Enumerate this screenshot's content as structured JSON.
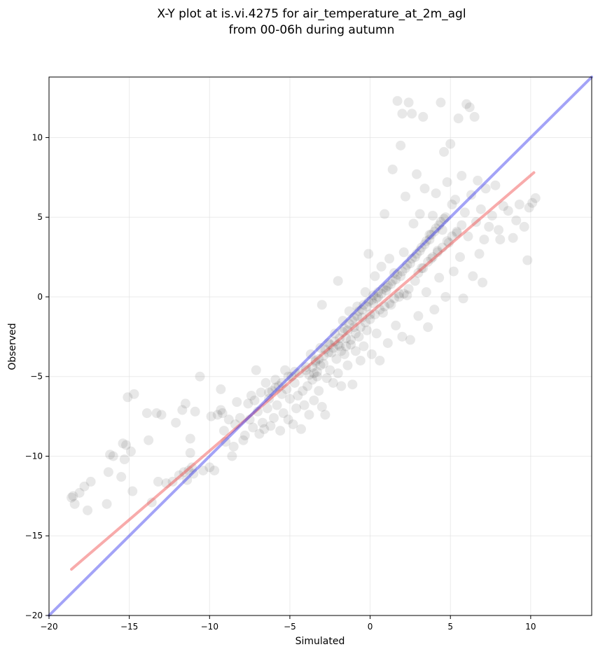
{
  "chart_data": {
    "type": "scatter",
    "title_line1": "X-Y plot at is.vi.4275 for air_temperature_at_2m_agl",
    "title_line2": "from 00-06h during autumn",
    "xlabel": "Simulated",
    "ylabel": "Observed",
    "xlim": [
      -20,
      13.8
    ],
    "ylim": [
      -20,
      13.8
    ],
    "x_ticks": [
      -20,
      -15,
      -10,
      -5,
      0,
      5,
      10
    ],
    "y_ticks": [
      -20,
      -15,
      -10,
      -5,
      0,
      5,
      10
    ],
    "x_tick_labels": [
      "−20",
      "−15",
      "−10",
      "−5",
      "0",
      "5",
      "10"
    ],
    "y_tick_labels": [
      "−20",
      "−15",
      "−10",
      "−5",
      "0",
      "5",
      "10"
    ],
    "grid": true,
    "point_color": "#000000",
    "point_opacity": 0.09,
    "points": [
      [
        -18.6,
        -12.6
      ],
      [
        -18.4,
        -13.0
      ],
      [
        -18.1,
        -12.3
      ],
      [
        -17.8,
        -11.9
      ],
      [
        -17.6,
        -13.4
      ],
      [
        -17.4,
        -11.6
      ],
      [
        -16.4,
        -13.0
      ],
      [
        -16.3,
        -11.0
      ],
      [
        -16.2,
        -9.9
      ],
      [
        -16.0,
        -10.0
      ],
      [
        -15.5,
        -11.3
      ],
      [
        -15.4,
        -9.2
      ],
      [
        -15.3,
        -10.2
      ],
      [
        -15.2,
        -9.3
      ],
      [
        -15.1,
        -6.3
      ],
      [
        -14.9,
        -9.7
      ],
      [
        -14.7,
        -6.1
      ],
      [
        -14.8,
        -12.2
      ],
      [
        -13.9,
        -7.3
      ],
      [
        -13.8,
        -9.0
      ],
      [
        -13.6,
        -12.9
      ],
      [
        -13.3,
        -7.3
      ],
      [
        -13.2,
        -11.6
      ],
      [
        -13.0,
        -7.4
      ],
      [
        -12.7,
        -11.7
      ],
      [
        -12.3,
        -11.6
      ],
      [
        -12.1,
        -7.9
      ],
      [
        -11.9,
        -11.2
      ],
      [
        -11.7,
        -7.1
      ],
      [
        -11.6,
        -11.0
      ],
      [
        -11.5,
        -6.7
      ],
      [
        -11.4,
        -11.5
      ],
      [
        -11.3,
        -10.9
      ],
      [
        -11.2,
        -8.9
      ],
      [
        -11.2,
        -9.8
      ],
      [
        -11.1,
        -10.7
      ],
      [
        -11.0,
        -11.1
      ],
      [
        -10.9,
        -7.2
      ],
      [
        -10.6,
        -5.0
      ],
      [
        -10.4,
        -10.9
      ],
      [
        -10.0,
        -10.7
      ],
      [
        -9.9,
        -7.5
      ],
      [
        -9.7,
        -10.9
      ],
      [
        -9.5,
        -7.4
      ],
      [
        -9.3,
        -5.8
      ],
      [
        -9.3,
        -7.1
      ],
      [
        -9.2,
        -7.3
      ],
      [
        -9.1,
        -8.4
      ],
      [
        -9.0,
        -9.1
      ],
      [
        -8.8,
        -7.7
      ],
      [
        -8.6,
        -10.0
      ],
      [
        -8.5,
        -9.4
      ],
      [
        -8.4,
        -8.0
      ],
      [
        -8.3,
        -6.6
      ],
      [
        -8.1,
        -7.6
      ],
      [
        -7.9,
        -9.0
      ],
      [
        -7.8,
        -8.7
      ],
      [
        -7.6,
        -6.7
      ],
      [
        -7.5,
        -7.7
      ],
      [
        -7.4,
        -6.2
      ],
      [
        -7.3,
        -8.2
      ],
      [
        -7.2,
        -6.5
      ],
      [
        -7.1,
        -4.6
      ],
      [
        -7.0,
        -7.2
      ],
      [
        -6.9,
        -8.6
      ],
      [
        -6.8,
        -6.0
      ],
      [
        -6.7,
        -7.9
      ],
      [
        -6.6,
        -8.3
      ],
      [
        -6.5,
        -5.4
      ],
      [
        -6.4,
        -7.0
      ],
      [
        -6.3,
        -6.4
      ],
      [
        -6.2,
        -8.1
      ],
      [
        -6.1,
        -5.9
      ],
      [
        -6.0,
        -7.6
      ],
      [
        -5.9,
        -5.2
      ],
      [
        -5.8,
        -6.8
      ],
      [
        -5.7,
        -5.6
      ],
      [
        -5.6,
        -8.4
      ],
      [
        -5.5,
        -6.1
      ],
      [
        -5.4,
        -7.3
      ],
      [
        -5.3,
        -4.6
      ],
      [
        -5.2,
        -5.8
      ],
      [
        -5.1,
        -7.7
      ],
      [
        -5.0,
        -6.4
      ],
      [
        -4.9,
        -5.0
      ],
      [
        -4.8,
        -8.0
      ],
      [
        -4.7,
        -5.4
      ],
      [
        -4.6,
        -7.0
      ],
      [
        -4.5,
        -6.2
      ],
      [
        -4.4,
        -4.8
      ],
      [
        -4.3,
        -8.3
      ],
      [
        -4.2,
        -5.9
      ],
      [
        -4.1,
        -6.8
      ],
      [
        -4.0,
        -4.4
      ],
      [
        -3.9,
        -5.6
      ],
      [
        -3.8,
        -7.4
      ],
      [
        -3.7,
        -3.6
      ],
      [
        -3.6,
        -5.2
      ],
      [
        -3.5,
        -6.5
      ],
      [
        -3.4,
        -4.0
      ],
      [
        -3.3,
        -4.7
      ],
      [
        -3.2,
        -5.9
      ],
      [
        -3.1,
        -3.2
      ],
      [
        -3.0,
        -0.5
      ],
      [
        -3.0,
        -6.9
      ],
      [
        -2.9,
        -4.2
      ],
      [
        -2.8,
        -7.4
      ],
      [
        -2.7,
        -5.1
      ],
      [
        -2.6,
        -2.9
      ],
      [
        -2.5,
        -4.6
      ],
      [
        -2.4,
        -3.5
      ],
      [
        -2.3,
        -5.4
      ],
      [
        -2.2,
        -2.3
      ],
      [
        -2.1,
        -3.9
      ],
      [
        -2.0,
        1.0
      ],
      [
        -2.0,
        -4.8
      ],
      [
        -1.9,
        -3.1
      ],
      [
        -1.8,
        -5.6
      ],
      [
        -1.7,
        -1.5
      ],
      [
        -1.6,
        -3.6
      ],
      [
        -1.5,
        -2.6
      ],
      [
        -1.4,
        -4.3
      ],
      [
        -1.3,
        -0.9
      ],
      [
        -1.2,
        -3.0
      ],
      [
        -1.1,
        -5.5
      ],
      [
        -1.0,
        -1.9
      ],
      [
        -0.9,
        -3.4
      ],
      [
        -0.8,
        -0.6
      ],
      [
        -0.7,
        -2.5
      ],
      [
        -0.6,
        -4.0
      ],
      [
        -0.5,
        -1.3
      ],
      [
        -0.4,
        -3.1
      ],
      [
        -0.3,
        0.3
      ],
      [
        -0.2,
        -2.1
      ],
      [
        -0.1,
        2.7
      ],
      [
        0.0,
        -1.1
      ],
      [
        0.1,
        -3.6
      ],
      [
        0.2,
        -0.4
      ],
      [
        0.3,
        1.3
      ],
      [
        0.4,
        -2.3
      ],
      [
        0.5,
        0.0
      ],
      [
        0.6,
        -4.0
      ],
      [
        0.7,
        1.9
      ],
      [
        0.8,
        -1.0
      ],
      [
        0.9,
        5.2
      ],
      [
        1.0,
        0.6
      ],
      [
        1.1,
        -2.9
      ],
      [
        1.2,
        2.4
      ],
      [
        1.3,
        -0.5
      ],
      [
        1.4,
        8.0
      ],
      [
        1.5,
        1.5
      ],
      [
        1.6,
        -1.8
      ],
      [
        1.7,
        12.3
      ],
      [
        1.8,
        0.2
      ],
      [
        1.9,
        9.5
      ],
      [
        2.0,
        11.5
      ],
      [
        2.0,
        -2.5
      ],
      [
        2.1,
        2.8
      ],
      [
        2.2,
        6.3
      ],
      [
        2.3,
        0.1
      ],
      [
        2.4,
        12.2
      ],
      [
        2.5,
        -2.7
      ],
      [
        2.6,
        11.5
      ],
      [
        2.7,
        4.6
      ],
      [
        2.8,
        1.0
      ],
      [
        2.9,
        7.7
      ],
      [
        3.0,
        -1.2
      ],
      [
        3.1,
        5.2
      ],
      [
        3.2,
        1.8
      ],
      [
        3.3,
        11.3
      ],
      [
        3.4,
        6.8
      ],
      [
        3.5,
        0.3
      ],
      [
        3.6,
        -1.9
      ],
      [
        3.7,
        3.9
      ],
      [
        3.8,
        2.4
      ],
      [
        3.9,
        5.1
      ],
      [
        4.0,
        -0.8
      ],
      [
        4.1,
        6.5
      ],
      [
        4.2,
        2.9
      ],
      [
        4.3,
        1.2
      ],
      [
        4.4,
        12.2
      ],
      [
        4.5,
        4.2
      ],
      [
        4.6,
        9.1
      ],
      [
        4.7,
        0.0
      ],
      [
        4.8,
        7.2
      ],
      [
        4.9,
        3.4
      ],
      [
        5.0,
        9.6
      ],
      [
        5.1,
        5.8
      ],
      [
        5.2,
        1.6
      ],
      [
        5.3,
        6.1
      ],
      [
        5.4,
        4.0
      ],
      [
        5.5,
        11.2
      ],
      [
        5.6,
        2.5
      ],
      [
        5.7,
        7.6
      ],
      [
        5.8,
        -0.1
      ],
      [
        5.9,
        5.3
      ],
      [
        6.0,
        12.1
      ],
      [
        6.1,
        3.8
      ],
      [
        6.2,
        11.9
      ],
      [
        6.3,
        6.4
      ],
      [
        6.4,
        1.3
      ],
      [
        6.5,
        11.3
      ],
      [
        6.6,
        4.7
      ],
      [
        6.7,
        7.3
      ],
      [
        6.8,
        2.7
      ],
      [
        6.9,
        5.5
      ],
      [
        7.0,
        0.9
      ],
      [
        7.1,
        3.6
      ],
      [
        7.2,
        6.8
      ],
      [
        7.4,
        4.4
      ],
      [
        7.6,
        5.1
      ],
      [
        7.8,
        7.0
      ],
      [
        8.0,
        4.2
      ],
      [
        8.1,
        3.6
      ],
      [
        8.3,
        5.7
      ],
      [
        8.6,
        5.4
      ],
      [
        8.9,
        3.7
      ],
      [
        9.1,
        4.8
      ],
      [
        9.3,
        5.8
      ],
      [
        9.6,
        4.4
      ],
      [
        9.8,
        2.3
      ],
      [
        9.9,
        5.6
      ],
      [
        10.1,
        5.9
      ],
      [
        10.3,
        6.2
      ],
      [
        -18.5,
        -12.5
      ],
      [
        -3.4,
        -4.1
      ],
      [
        -3.2,
        -3.9
      ],
      [
        -3.1,
        -4.3
      ],
      [
        -2.9,
        -3.7
      ],
      [
        -2.8,
        -3.3
      ],
      [
        -2.6,
        -3.5
      ],
      [
        -2.5,
        -3.0
      ],
      [
        -2.3,
        -3.2
      ],
      [
        -2.2,
        -2.8
      ],
      [
        -2.0,
        -3.0
      ],
      [
        -1.9,
        -2.6
      ],
      [
        -1.7,
        -2.2
      ],
      [
        -1.6,
        -2.0
      ],
      [
        -1.4,
        -2.1
      ],
      [
        -1.3,
        -1.7
      ],
      [
        -1.1,
        -1.5
      ],
      [
        -1.0,
        -1.3
      ],
      [
        -0.8,
        -1.2
      ],
      [
        -0.7,
        -0.9
      ],
      [
        -0.5,
        -0.8
      ],
      [
        -0.4,
        -0.5
      ],
      [
        -0.2,
        -0.6
      ],
      [
        -0.1,
        -0.3
      ],
      [
        0.1,
        -0.2
      ],
      [
        0.2,
        0.1
      ],
      [
        0.4,
        -0.1
      ],
      [
        0.5,
        0.3
      ],
      [
        0.7,
        0.2
      ],
      [
        0.8,
        0.5
      ],
      [
        1.0,
        0.4
      ],
      [
        1.1,
        0.7
      ],
      [
        1.3,
        0.8
      ],
      [
        1.4,
        1.0
      ],
      [
        1.6,
        1.1
      ],
      [
        1.7,
        1.4
      ],
      [
        1.9,
        1.3
      ],
      [
        2.0,
        1.6
      ],
      [
        2.2,
        1.8
      ],
      [
        2.3,
        2.0
      ],
      [
        2.5,
        2.1
      ],
      [
        2.6,
        2.4
      ],
      [
        2.8,
        2.5
      ],
      [
        2.9,
        2.7
      ],
      [
        3.1,
        2.9
      ],
      [
        3.2,
        3.1
      ],
      [
        3.4,
        3.3
      ],
      [
        3.5,
        3.5
      ],
      [
        3.7,
        3.6
      ],
      [
        3.8,
        3.9
      ],
      [
        4.0,
        4.1
      ],
      [
        4.1,
        4.3
      ],
      [
        4.3,
        4.5
      ],
      [
        4.4,
        4.7
      ],
      [
        4.6,
        4.9
      ],
      [
        4.7,
        5.0
      ],
      [
        -4.0,
        -4.6
      ],
      [
        -3.8,
        -4.9
      ],
      [
        -3.6,
        -4.4
      ],
      [
        -3.5,
        -4.8
      ],
      [
        -3.3,
        -5.0
      ],
      [
        -1.8,
        -3.4
      ],
      [
        -1.5,
        -3.1
      ],
      [
        -1.2,
        -2.7
      ],
      [
        -0.9,
        -2.3
      ],
      [
        -0.6,
        -1.9
      ],
      [
        -0.3,
        -1.6
      ],
      [
        0.0,
        -1.4
      ],
      [
        0.3,
        -1.1
      ],
      [
        0.6,
        -0.8
      ],
      [
        0.9,
        -0.6
      ],
      [
        1.2,
        -0.4
      ],
      [
        1.5,
        -0.1
      ],
      [
        1.8,
        0.0
      ],
      [
        2.1,
        0.2
      ],
      [
        2.4,
        0.5
      ],
      [
        -6.3,
        -6.0
      ],
      [
        -5.9,
        -5.7
      ],
      [
        -5.5,
        -5.4
      ],
      [
        -5.1,
        -5.0
      ],
      [
        -4.7,
        -4.7
      ],
      [
        3.0,
        1.5
      ],
      [
        3.3,
        1.8
      ],
      [
        3.6,
        2.2
      ],
      [
        3.9,
        2.5
      ],
      [
        4.2,
        2.8
      ],
      [
        4.5,
        3.1
      ],
      [
        4.8,
        3.5
      ],
      [
        5.1,
        3.8
      ],
      [
        5.4,
        4.1
      ],
      [
        5.7,
        4.5
      ]
    ],
    "series": [
      {
        "type": "fit",
        "color": "#ef4444",
        "x": [
          -18.6,
          10.2
        ],
        "y": [
          -17.1,
          7.8
        ]
      },
      {
        "type": "identity",
        "color": "#3333ee",
        "x": [
          -20,
          13.8
        ],
        "y": [
          -20,
          13.8
        ]
      }
    ]
  }
}
